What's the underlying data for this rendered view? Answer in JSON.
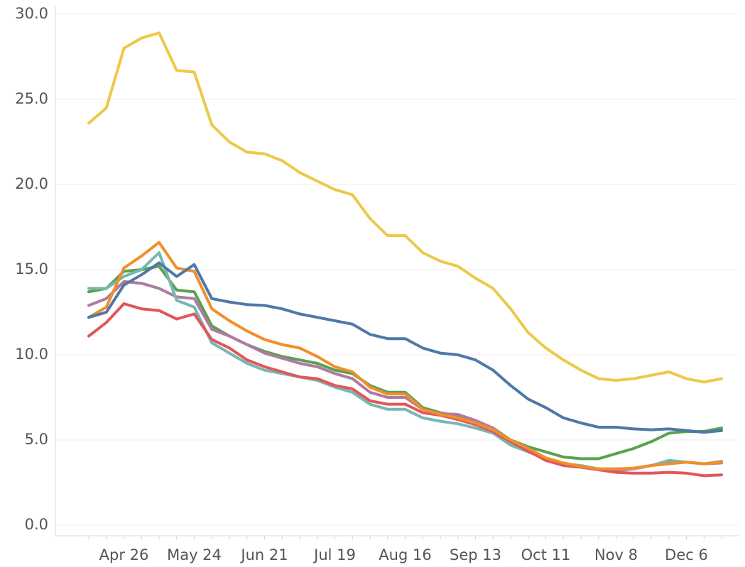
{
  "chart_data": {
    "type": "line",
    "categories": [
      null,
      null,
      "Apr 26",
      null,
      null,
      null,
      "May 24",
      null,
      null,
      null,
      "Jun 21",
      null,
      null,
      null,
      "Jul 19",
      null,
      null,
      null,
      "Aug 16",
      null,
      null,
      null,
      "Sep 13",
      null,
      null,
      null,
      "Oct 11",
      null,
      null,
      null,
      "Nov 8",
      null,
      null,
      null,
      "Dec 6",
      null,
      null
    ],
    "ylim": [
      0,
      30
    ],
    "yticks": [
      {
        "value": 0,
        "label": "0.0"
      },
      {
        "value": 5,
        "label": "5.0"
      },
      {
        "value": 10,
        "label": "10.0"
      },
      {
        "value": 15,
        "label": "15.0"
      },
      {
        "value": 20,
        "label": "20.0"
      },
      {
        "value": 25,
        "label": "25.0"
      },
      {
        "value": 30,
        "label": "30.0"
      }
    ],
    "grid": true,
    "series": [
      {
        "color": "#59a14f",
        "values": [
          13.7,
          13.9,
          14.9,
          15.0,
          15.2,
          13.8,
          13.7,
          11.7,
          11.1,
          10.6,
          10.2,
          9.9,
          9.7,
          9.5,
          9.1,
          8.9,
          8.2,
          7.8,
          7.8,
          6.9,
          6.6,
          6.4,
          6.1,
          5.7,
          5.0,
          4.6,
          4.3,
          4.0,
          3.9,
          3.9,
          4.2,
          4.5,
          4.9,
          5.4,
          5.5,
          5.5,
          5.7
        ]
      },
      {
        "color": "#b07aa1",
        "values": [
          12.9,
          13.3,
          14.3,
          14.2,
          13.9,
          13.4,
          13.3,
          11.5,
          11.1,
          10.6,
          10.1,
          9.8,
          9.5,
          9.3,
          8.9,
          8.6,
          7.8,
          7.5,
          7.5,
          6.8,
          6.55,
          6.5,
          6.15,
          5.7,
          4.9,
          4.4,
          3.9,
          3.6,
          3.45,
          3.3,
          3.2,
          3.3,
          3.5,
          3.7,
          3.7,
          3.6,
          3.65
        ]
      },
      {
        "color": "#76b7b2",
        "values": [
          13.9,
          13.9,
          14.6,
          15.0,
          16.0,
          13.2,
          12.8,
          10.7,
          10.1,
          9.5,
          9.1,
          8.9,
          8.7,
          8.5,
          8.1,
          7.8,
          7.1,
          6.8,
          6.8,
          6.3,
          6.1,
          5.95,
          5.7,
          5.4,
          4.7,
          4.3,
          3.9,
          3.6,
          3.5,
          3.3,
          3.3,
          3.3,
          3.5,
          3.8,
          3.7,
          3.6,
          3.75
        ]
      },
      {
        "color": "#e15759",
        "values": [
          11.1,
          11.9,
          13.0,
          12.7,
          12.6,
          12.1,
          12.4,
          10.9,
          10.4,
          9.7,
          9.3,
          9.0,
          8.7,
          8.6,
          8.2,
          8.0,
          7.3,
          7.1,
          7.1,
          6.6,
          6.45,
          6.2,
          5.9,
          5.5,
          4.9,
          4.35,
          3.8,
          3.5,
          3.4,
          3.25,
          3.1,
          3.05,
          3.05,
          3.1,
          3.05,
          2.9,
          2.95
        ]
      },
      {
        "color": "#f28e2b",
        "values": [
          12.2,
          12.8,
          15.1,
          15.8,
          16.6,
          15.1,
          14.9,
          12.7,
          12.0,
          11.4,
          10.9,
          10.6,
          10.4,
          9.9,
          9.3,
          9.0,
          8.1,
          7.7,
          7.7,
          6.8,
          6.5,
          6.3,
          6.0,
          5.6,
          5.0,
          4.5,
          3.95,
          3.65,
          3.45,
          3.3,
          3.3,
          3.35,
          3.5,
          3.6,
          3.7,
          3.6,
          3.7
        ]
      },
      {
        "color": "#4e79a7",
        "values": [
          12.2,
          12.5,
          14.1,
          14.7,
          15.4,
          14.6,
          15.3,
          13.3,
          13.1,
          12.95,
          12.9,
          12.7,
          12.4,
          12.2,
          12.0,
          11.8,
          11.2,
          10.95,
          10.95,
          10.4,
          10.1,
          10.0,
          9.7,
          9.1,
          8.2,
          7.4,
          6.9,
          6.3,
          6.0,
          5.75,
          5.75,
          5.65,
          5.6,
          5.65,
          5.55,
          5.45,
          5.55
        ]
      },
      {
        "color": "#edc948",
        "values": [
          23.6,
          24.5,
          28.0,
          28.6,
          28.9,
          26.7,
          26.6,
          23.5,
          22.5,
          21.9,
          21.8,
          21.4,
          20.7,
          20.2,
          19.7,
          19.4,
          18.0,
          17.0,
          17.0,
          16.0,
          15.5,
          15.2,
          14.5,
          13.9,
          12.7,
          11.3,
          10.4,
          9.7,
          9.1,
          8.6,
          8.5,
          8.6,
          8.8,
          9.0,
          8.6,
          8.4,
          8.6
        ]
      }
    ]
  }
}
